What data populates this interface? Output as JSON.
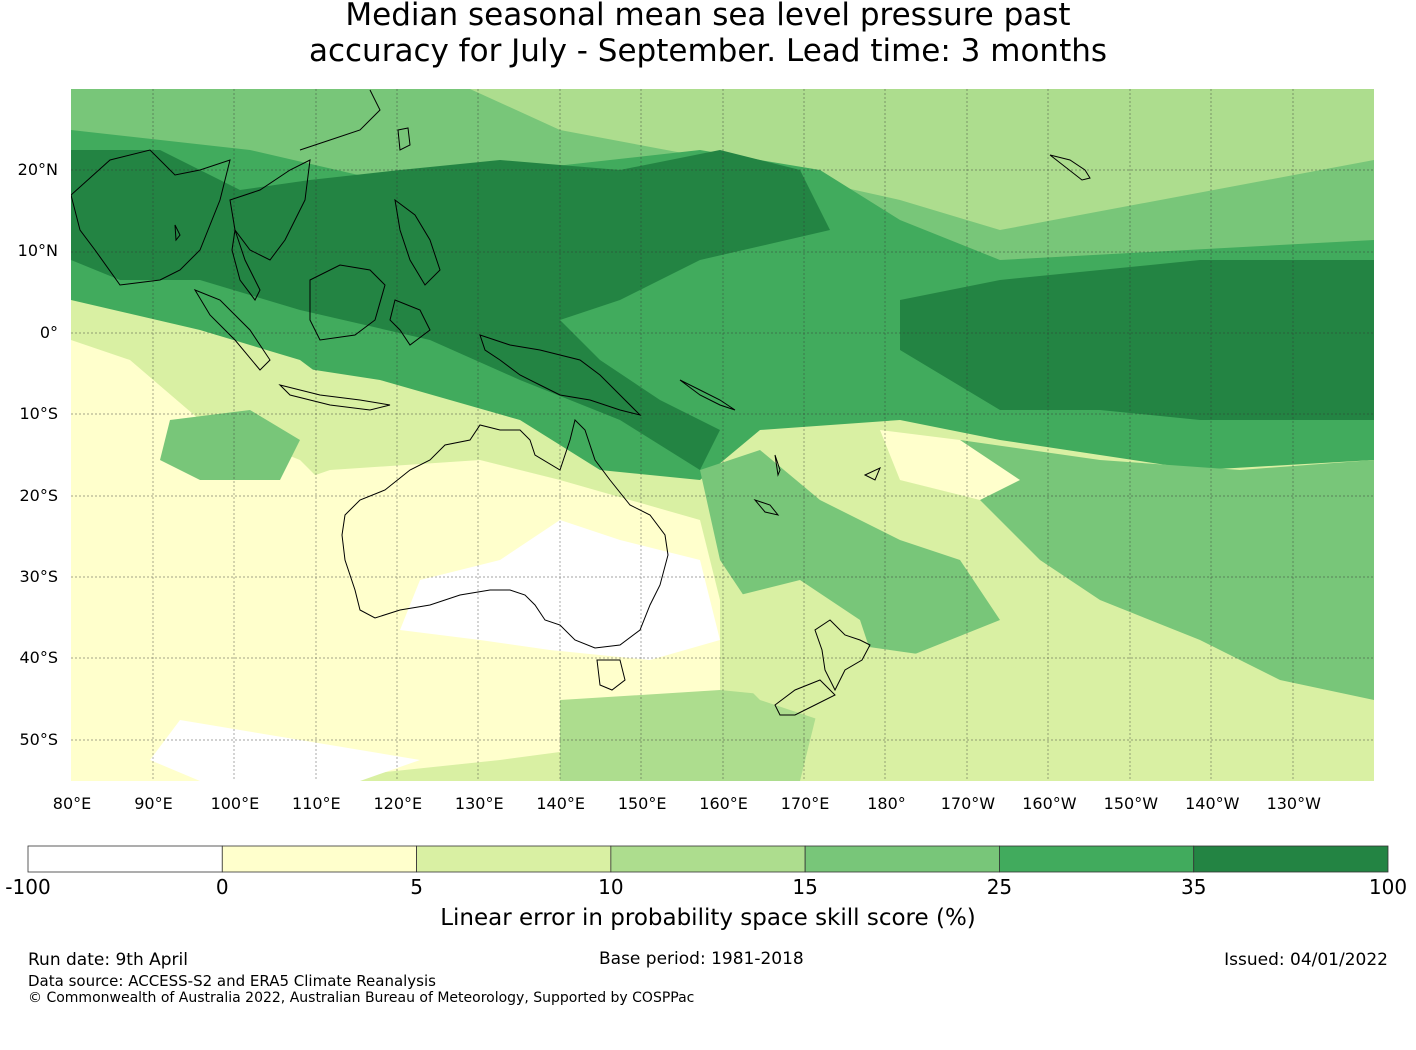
{
  "title": {
    "line1": "Median seasonal mean sea level pressure past",
    "line2": "accuracy for July - September. Lead time: 3 months"
  },
  "map": {
    "lat_labels": [
      "20°N",
      "10°N",
      "0°",
      "10°S",
      "20°S",
      "30°S",
      "40°S",
      "50°S"
    ],
    "lon_labels": [
      "80°E",
      "90°E",
      "100°E",
      "110°E",
      "120°E",
      "130°E",
      "140°E",
      "150°E",
      "160°E",
      "170°E",
      "180°",
      "170°W",
      "160°W",
      "150°W",
      "140°W",
      "130°W"
    ],
    "colors": {
      "ocean_base": "#d9f0a3",
      "land_outline": "#000000"
    }
  },
  "colorbar": {
    "ticks": [
      "-100",
      "0",
      "5",
      "10",
      "15",
      "25",
      "35",
      "100"
    ],
    "colors": [
      "#ffffff",
      "#ffffcc",
      "#d9f0a3",
      "#addd8e",
      "#78c679",
      "#41ab5d",
      "#238443"
    ],
    "label": "Linear error in probability space skill score (%)"
  },
  "footer": {
    "run_date": "Run date: 9th April",
    "base_period": "Base period: 1981-2018",
    "issued": "Issued: 04/01/2022",
    "data_source": "Data source: ACCESS-S2 and ERA5 Climate Reanalysis",
    "copyright": "© Commonwealth of Australia 2022, Australian Bureau of Meteorology, Supported by COSPPac"
  }
}
